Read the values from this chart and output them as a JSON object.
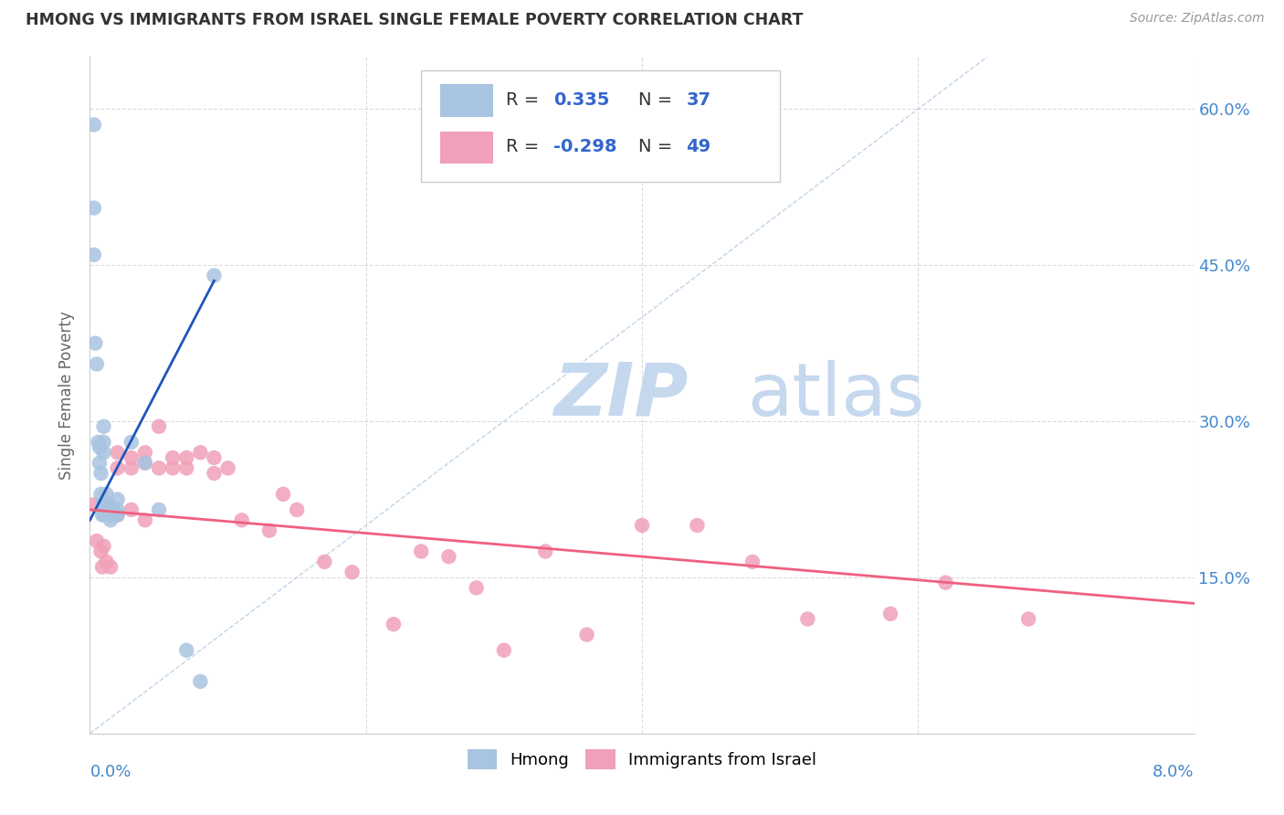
{
  "title": "HMONG VS IMMIGRANTS FROM ISRAEL SINGLE FEMALE POVERTY CORRELATION CHART",
  "source": "Source: ZipAtlas.com",
  "ylabel": "Single Female Poverty",
  "y_ticks": [
    0.0,
    0.15,
    0.3,
    0.45,
    0.6
  ],
  "y_tick_labels": [
    "",
    "15.0%",
    "30.0%",
    "45.0%",
    "60.0%"
  ],
  "xlim": [
    0.0,
    0.08
  ],
  "ylim": [
    0.0,
    0.65
  ],
  "hmong_R": 0.335,
  "hmong_N": 37,
  "israel_R": -0.298,
  "israel_N": 49,
  "hmong_color": "#a8c4e0",
  "israel_color": "#f0a0b8",
  "hmong_line_color": "#2255bb",
  "israel_line_color": "#f06080",
  "ref_line_color": "#b8cfe8",
  "background_color": "#ffffff",
  "watermark_zip": "ZIP",
  "watermark_atlas": "atlas",
  "watermark_color_zip": "#c5d8ee",
  "watermark_color_atlas": "#c5d8ee",
  "legend_label_hmong": "Hmong",
  "legend_label_israel": "Immigrants from Israel",
  "hmong_x": [
    0.0003,
    0.0003,
    0.0003,
    0.0004,
    0.0005,
    0.0006,
    0.0007,
    0.0007,
    0.0008,
    0.0008,
    0.0009,
    0.0009,
    0.001,
    0.001,
    0.001,
    0.001,
    0.001,
    0.0012,
    0.0012,
    0.0013,
    0.0013,
    0.0014,
    0.0014,
    0.0015,
    0.0015,
    0.0016,
    0.0016,
    0.0017,
    0.002,
    0.002,
    0.002,
    0.003,
    0.004,
    0.005,
    0.007,
    0.008,
    0.009
  ],
  "hmong_y": [
    0.585,
    0.505,
    0.46,
    0.375,
    0.355,
    0.28,
    0.275,
    0.26,
    0.25,
    0.23,
    0.22,
    0.21,
    0.295,
    0.28,
    0.27,
    0.22,
    0.21,
    0.23,
    0.22,
    0.22,
    0.215,
    0.22,
    0.215,
    0.21,
    0.205,
    0.215,
    0.21,
    0.215,
    0.225,
    0.215,
    0.21,
    0.28,
    0.26,
    0.215,
    0.08,
    0.05,
    0.44
  ],
  "israel_x": [
    0.0003,
    0.0005,
    0.0008,
    0.0009,
    0.001,
    0.001,
    0.0012,
    0.0013,
    0.0015,
    0.0016,
    0.002,
    0.002,
    0.002,
    0.003,
    0.003,
    0.003,
    0.004,
    0.004,
    0.004,
    0.005,
    0.005,
    0.006,
    0.006,
    0.007,
    0.007,
    0.008,
    0.009,
    0.009,
    0.01,
    0.011,
    0.013,
    0.014,
    0.015,
    0.017,
    0.019,
    0.022,
    0.024,
    0.026,
    0.028,
    0.03,
    0.033,
    0.036,
    0.04,
    0.044,
    0.048,
    0.052,
    0.058,
    0.062,
    0.068
  ],
  "israel_y": [
    0.22,
    0.185,
    0.175,
    0.16,
    0.22,
    0.18,
    0.165,
    0.215,
    0.16,
    0.215,
    0.27,
    0.255,
    0.21,
    0.265,
    0.255,
    0.215,
    0.27,
    0.26,
    0.205,
    0.255,
    0.295,
    0.265,
    0.255,
    0.265,
    0.255,
    0.27,
    0.265,
    0.25,
    0.255,
    0.205,
    0.195,
    0.23,
    0.215,
    0.165,
    0.155,
    0.105,
    0.175,
    0.17,
    0.14,
    0.08,
    0.175,
    0.095,
    0.2,
    0.2,
    0.165,
    0.11,
    0.115,
    0.145,
    0.11
  ]
}
